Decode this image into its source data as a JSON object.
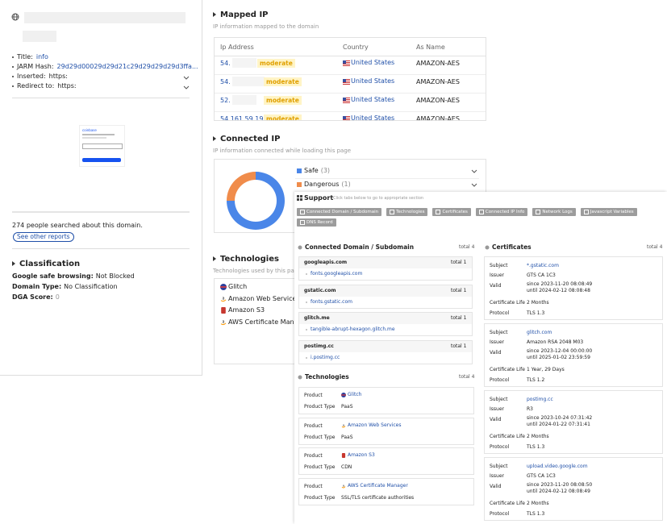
{
  "sidebar": {
    "fields": [
      {
        "label": "Title:",
        "value": "info"
      },
      {
        "label": "JARM Hash:",
        "value": "29d29d00029d29d21c29d29d29d29d3ffa..."
      },
      {
        "label": "Inserted:",
        "value": "https:"
      },
      {
        "label": "Redirect to:",
        "value": "https:"
      }
    ],
    "thumbnail_brand": "coinbase",
    "searched": "274 people searched about this domain.",
    "see_other": "See other reports",
    "classification": {
      "title": "Classification",
      "rows": [
        {
          "label": "Google safe browsing:",
          "value": "Not Blocked"
        },
        {
          "label": "Domain Type:",
          "value": "No Classification"
        },
        {
          "label": "DGA Score:",
          "value": "0"
        }
      ]
    }
  },
  "mapped_ip": {
    "title": "Mapped IP",
    "subtitle": "IP information mapped to the domain",
    "columns": [
      "Ip Address",
      "Country",
      "As Name"
    ],
    "rows": [
      {
        "ip": "54.",
        "risk": "moderate",
        "country": "United States",
        "as_name": "AMAZON-AES"
      },
      {
        "ip": "54.",
        "risk": "moderate",
        "country": "United States",
        "as_name": "AMAZON-AES"
      },
      {
        "ip": "52.",
        "risk": "moderate",
        "country": "United States",
        "as_name": "AMAZON-AES"
      },
      {
        "ip": "54.161.59.193",
        "risk": "moderate",
        "country": "United States",
        "as_name": "AMAZON-AES"
      }
    ]
  },
  "connected_ip": {
    "title": "Connected IP",
    "subtitle": "IP information connected while loading this page",
    "items": [
      {
        "label": "Safe",
        "value": 3,
        "value_label": "(3)",
        "color": "#4a86e8"
      },
      {
        "label": "Dangerous",
        "value": 1,
        "value_label": "(1)",
        "color": "#f08c4b"
      }
    ]
  },
  "technologies_main": {
    "title": "Technologies",
    "subtitle": "Technologies used by this page",
    "items": [
      "Glitch",
      "Amazon Web Services",
      "Amazon S3",
      "AWS Certificate Manager"
    ]
  },
  "support": {
    "title": "Support",
    "hint": "Click tabs below to go to appropriate section",
    "tabs": [
      "Connected Domain / Subdomain",
      "Technologies",
      "Certificates",
      "Connected IP Info",
      "Network Logs",
      "Javascript Variables",
      "DNS Record"
    ]
  },
  "connected_domain": {
    "title": "Connected Domain / Subdomain",
    "total": "total 4",
    "groups": [
      {
        "domain": "googleapis.com",
        "total": "total 1",
        "items": [
          "fonts.googleapis.com"
        ]
      },
      {
        "domain": "gstatic.com",
        "total": "total 1",
        "items": [
          "fonts.gstatic.com"
        ]
      },
      {
        "domain": "glitch.me",
        "total": "total 1",
        "items": [
          "tangible-abrupt-hexagon.glitch.me"
        ]
      },
      {
        "domain": "postimg.cc",
        "total": "total 1",
        "items": [
          "i.postimg.cc"
        ]
      }
    ]
  },
  "technologies": {
    "title": "Technologies",
    "total": "total 4",
    "labels": [
      "Product",
      "Product Type"
    ],
    "items": [
      {
        "product": "Glitch",
        "type": "PaaS"
      },
      {
        "product": "Amazon Web Services",
        "type": "PaaS"
      },
      {
        "product": "Amazon S3",
        "type": "CDN"
      },
      {
        "product": "AWS Certificate Manager",
        "type": "SSL/TLS certificate authorities"
      }
    ]
  },
  "certificates": {
    "title": "Certificates",
    "total": "total 4",
    "labels": [
      "Subject",
      "Issuer",
      "Valid",
      "Certificate Life",
      "Protocol"
    ],
    "items": [
      {
        "subject": "*.gstatic.com",
        "issuer": "GTS CA 1C3",
        "since": "since 2023-11-20 08:08:49",
        "until": "until 2024-02-12 08:08:48",
        "life": "2 Months",
        "protocol": "TLS 1.3"
      },
      {
        "subject": "glitch.com",
        "issuer": "Amazon RSA 2048 M03",
        "since": "since 2023-12-04 00:00:00",
        "until": "until 2025-01-02 23:59:59",
        "life": "1 Year, 29 Days",
        "protocol": "TLS 1.2"
      },
      {
        "subject": "postimg.cc",
        "issuer": "R3",
        "since": "since 2023-10-24 07:31:42",
        "until": "until 2024-01-22 07:31:41",
        "life": "2 Months",
        "protocol": "TLS 1.3"
      },
      {
        "subject": "upload.video.google.com",
        "issuer": "GTS CA 1C3",
        "since": "since 2023-11-20 08:08:50",
        "until": "until 2024-02-12 08:08:49",
        "life": "2 Months",
        "protocol": "TLS 1.3"
      }
    ]
  }
}
